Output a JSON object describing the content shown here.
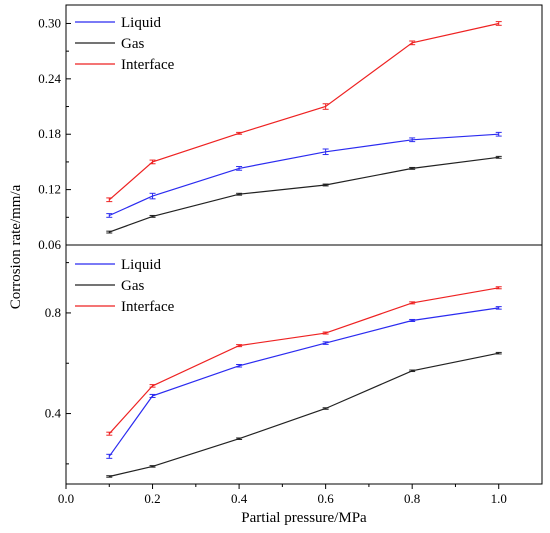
{
  "chart_data": [
    {
      "type": "line",
      "panel": "top",
      "x": [
        0.1,
        0.2,
        0.4,
        0.6,
        0.8,
        1.0
      ],
      "xlim": [
        0.0,
        1.1
      ],
      "ylim": [
        0.06,
        0.32
      ],
      "yticks": [
        0.06,
        0.12,
        0.18,
        0.24,
        0.3
      ],
      "ytick_labels": [
        "0.06",
        "0.12",
        "0.18",
        "0.24",
        "0.30"
      ],
      "error_bars": true,
      "legend_position": "top-left",
      "series": [
        {
          "name": "Liquid",
          "color": "#2b2bf0",
          "values": [
            0.092,
            0.113,
            0.143,
            0.161,
            0.174,
            0.18
          ],
          "errors": [
            0.002,
            0.003,
            0.002,
            0.003,
            0.002,
            0.002
          ]
        },
        {
          "name": "Gas",
          "color": "#222222",
          "values": [
            0.074,
            0.091,
            0.115,
            0.125,
            0.143,
            0.155
          ],
          "errors": [
            0.001,
            0.001,
            0.001,
            0.001,
            0.001,
            0.001
          ]
        },
        {
          "name": "Interface",
          "color": "#ee2222",
          "values": [
            0.109,
            0.15,
            0.181,
            0.21,
            0.279,
            0.3
          ],
          "errors": [
            0.002,
            0.002,
            0.001,
            0.003,
            0.002,
            0.002
          ]
        }
      ]
    },
    {
      "type": "line",
      "panel": "bottom",
      "x": [
        0.1,
        0.2,
        0.4,
        0.6,
        0.8,
        1.0
      ],
      "xlim": [
        0.0,
        1.1
      ],
      "ylim": [
        0.12,
        1.07
      ],
      "yticks": [
        0.4,
        0.8
      ],
      "ytick_labels": [
        "0.4",
        "0.8"
      ],
      "error_bars": true,
      "legend_position": "top-left",
      "series": [
        {
          "name": "Liquid",
          "color": "#2b2bf0",
          "values": [
            0.23,
            0.47,
            0.59,
            0.68,
            0.77,
            0.82
          ],
          "errors": [
            0.008,
            0.006,
            0.005,
            0.005,
            0.004,
            0.005
          ]
        },
        {
          "name": "Gas",
          "color": "#222222",
          "values": [
            0.15,
            0.19,
            0.3,
            0.42,
            0.57,
            0.64
          ],
          "errors": [
            0.003,
            0.003,
            0.003,
            0.003,
            0.003,
            0.003
          ]
        },
        {
          "name": "Interface",
          "color": "#ee2222",
          "values": [
            0.32,
            0.51,
            0.67,
            0.72,
            0.84,
            0.9
          ],
          "errors": [
            0.006,
            0.005,
            0.004,
            0.004,
            0.004,
            0.004
          ]
        }
      ]
    }
  ],
  "x_axis": {
    "label": "Partial pressure/MPa",
    "ticks": [
      0.0,
      0.2,
      0.4,
      0.6,
      0.8,
      1.0
    ],
    "tick_labels": [
      "0.0",
      "0.2",
      "0.4",
      "0.6",
      "0.8",
      "1.0"
    ]
  },
  "y_axis": {
    "label": "Corrosion rate/mm/a"
  }
}
